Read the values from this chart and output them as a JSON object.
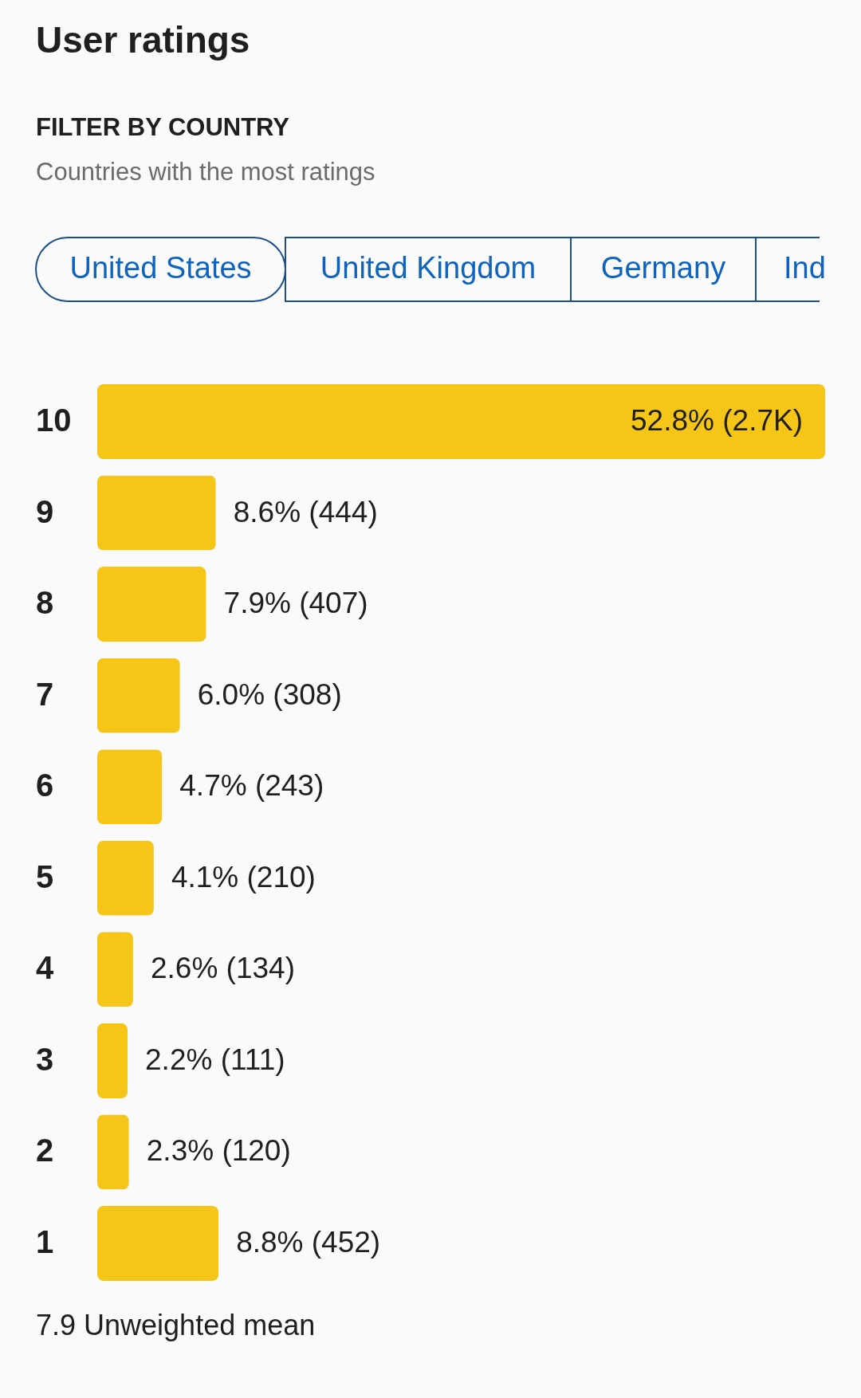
{
  "chart_data": {
    "type": "bar",
    "orientation": "horizontal",
    "title": "User ratings",
    "categories": [
      "10",
      "9",
      "8",
      "7",
      "6",
      "5",
      "4",
      "3",
      "2",
      "1"
    ],
    "values": [
      52.8,
      8.6,
      7.9,
      6.0,
      4.7,
      4.1,
      2.6,
      2.2,
      2.3,
      8.8
    ],
    "value_labels": [
      "52.8% (2.7K)",
      "8.6% (444)",
      "7.9% (407)",
      "6.0% (308)",
      "4.7% (243)",
      "4.1% (210)",
      "2.6% (134)",
      "2.2% (111)",
      "2.3% (120)",
      "8.8% (452)"
    ],
    "color": "#f5c518",
    "annotations": [
      "FILTER BY COUNTRY",
      "Countries with the most ratings",
      "United States",
      "United Kingdom",
      "Germany",
      "Ind",
      "7.9 Unweighted mean"
    ]
  }
}
